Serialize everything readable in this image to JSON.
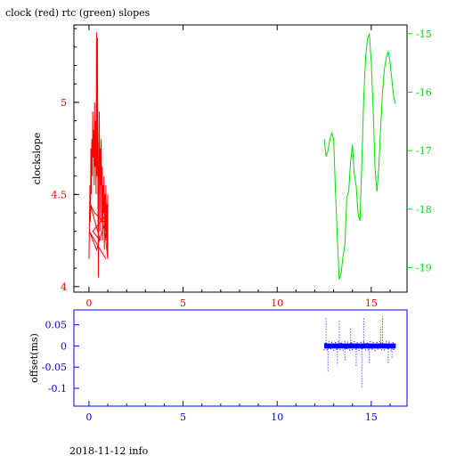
{
  "title": "clock (red) rtc (green) slopes",
  "footer": "2018-11-12 info",
  "colors": {
    "axis": "#000000",
    "clock": "#ff0000",
    "rtc": "#00e000",
    "offset": "#0000ff"
  },
  "chart_data": [
    {
      "type": "line",
      "ylabel": "clockslope",
      "xlim": [
        -0.8,
        16.9
      ],
      "ylim_left": [
        3.97,
        5.42
      ],
      "ylim_right": [
        -19.42,
        -14.85
      ],
      "x_ticks": [
        "0",
        "5",
        "10",
        "15"
      ],
      "y_ticks_left": [
        "4",
        "4.5",
        "5"
      ],
      "y_ticks_right": [
        "-15",
        "-16",
        "-17",
        "-18",
        "-19"
      ],
      "series": [
        {
          "axis": "left",
          "color": "#ff0000",
          "x": [
            0.0,
            0.02,
            0.05,
            0.08,
            0.1,
            0.12,
            0.15,
            0.18,
            0.2,
            0.22,
            0.25,
            0.28,
            0.3,
            0.32,
            0.35,
            0.38,
            0.4,
            0.42,
            0.45,
            0.48,
            0.5,
            0.52,
            0.55,
            0.58,
            0.6,
            0.62,
            0.65,
            0.68,
            0.7,
            0.72,
            0.75,
            0.78,
            0.8,
            0.82,
            0.85,
            0.88,
            0.9,
            0.92,
            0.95,
            0.98,
            1.0,
            1.0,
            0.8,
            0.3,
            0.05,
            0.6,
            0.2,
            1.0,
            0.4,
            0.02,
            0.9
          ],
          "y": [
            4.15,
            4.3,
            4.55,
            4.35,
            4.75,
            4.5,
            4.8,
            4.6,
            4.95,
            4.7,
            4.85,
            4.55,
            5.0,
            4.65,
            4.9,
            4.5,
            5.38,
            4.6,
            5.35,
            4.45,
            4.05,
            4.7,
            4.95,
            4.3,
            4.75,
            4.55,
            4.8,
            4.35,
            4.65,
            4.25,
            4.55,
            4.4,
            4.6,
            4.2,
            4.5,
            4.3,
            4.55,
            4.25,
            4.45,
            4.2,
            4.5,
            4.15,
            4.35,
            4.4,
            4.45,
            4.25,
            4.3,
            4.4,
            4.2,
            4.3,
            4.15
          ]
        },
        {
          "axis": "right",
          "color": "#00e000",
          "x": [
            12.5,
            12.6,
            12.7,
            12.8,
            12.9,
            13.0,
            13.1,
            13.2,
            13.3,
            13.4,
            13.5,
            13.6,
            13.7,
            13.8,
            13.9,
            14.0,
            14.1,
            14.2,
            14.3,
            14.4,
            14.5,
            14.6,
            14.7,
            14.8,
            14.9,
            15.0,
            15.1,
            15.2,
            15.3,
            15.4,
            15.5,
            15.6,
            15.7,
            15.8,
            15.9,
            16.0,
            16.1,
            16.2,
            16.3
          ],
          "y": [
            -16.8,
            -17.1,
            -17.0,
            -16.8,
            -16.7,
            -16.8,
            -17.7,
            -18.5,
            -19.2,
            -19.1,
            -18.8,
            -18.6,
            -17.8,
            -17.7,
            -17.2,
            -16.9,
            -17.4,
            -17.6,
            -18.1,
            -18.2,
            -17.2,
            -16.1,
            -15.4,
            -15.1,
            -15.0,
            -15.5,
            -16.3,
            -17.3,
            -17.7,
            -17.3,
            -16.6,
            -16.0,
            -15.6,
            -15.4,
            -15.3,
            -15.5,
            -15.8,
            -16.1,
            -16.2
          ]
        }
      ]
    },
    {
      "type": "scatter",
      "ylabel": "offset(ms)",
      "xlim": [
        -0.8,
        16.9
      ],
      "ylim": [
        -0.142,
        0.085
      ],
      "x_ticks": [
        "0",
        "5",
        "10",
        "15"
      ],
      "y_ticks": [
        "0.05",
        "0",
        "-0.05",
        "-0.1"
      ],
      "series": [
        {
          "name": "",
          "color": "#0000ff",
          "band": {
            "x_from": 12.5,
            "x_to": 16.3,
            "y_from": -0.006,
            "y_to": 0.006
          },
          "spikes_x": [
            12.6,
            12.7,
            13.2,
            13.3,
            13.6,
            13.9,
            14.2,
            14.5,
            14.6,
            14.9,
            15.5,
            15.6,
            15.9,
            16.1
          ],
          "spikes_y": [
            0.065,
            -0.06,
            -0.045,
            0.06,
            -0.035,
            0.04,
            -0.05,
            -0.1,
            0.065,
            -0.04,
            0.045,
            0.07,
            -0.04,
            -0.03
          ]
        }
      ]
    }
  ]
}
